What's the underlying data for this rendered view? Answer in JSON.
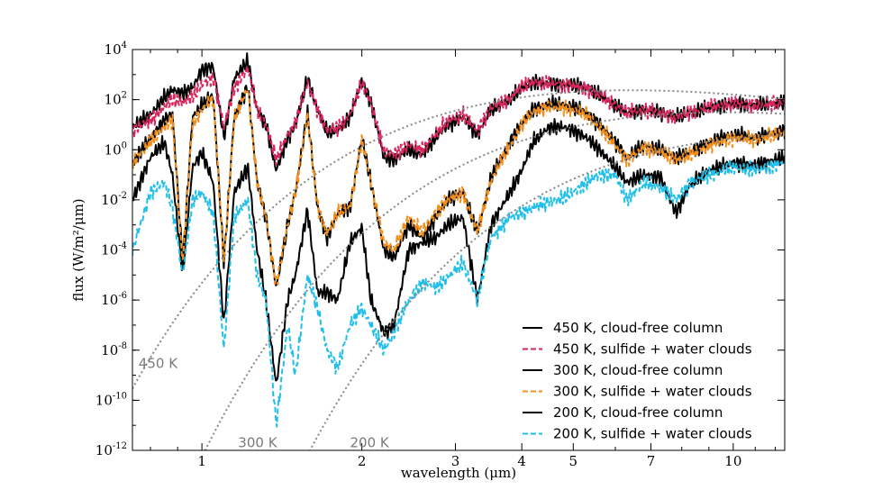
{
  "chart_data": {
    "type": "line",
    "xlabel": "wavelength (μm)",
    "ylabel": "flux (W/m²/μm)",
    "xscale": "log",
    "yscale": "log",
    "xlim": [
      0.74,
      12.5
    ],
    "ylim": [
      1e-12,
      10000.0
    ],
    "grid": false,
    "legend_position": "bottom-right",
    "x_ticks": [
      "1",
      "2",
      "3",
      "4",
      "5",
      "7",
      "10"
    ],
    "x_tick_values": [
      1,
      2,
      3,
      4,
      5,
      7,
      10
    ],
    "y_ticks": [
      {
        "base": "10",
        "exp": "4",
        "value": 4
      },
      {
        "base": "10",
        "exp": "2",
        "value": 2
      },
      {
        "base": "10",
        "exp": "0",
        "value": 0
      },
      {
        "base": "10",
        "exp": "-2",
        "value": -2
      },
      {
        "base": "10",
        "exp": "-4",
        "value": -4
      },
      {
        "base": "10",
        "exp": "-6",
        "value": -6
      },
      {
        "base": "10",
        "exp": "-8",
        "value": -8
      },
      {
        "base": "10",
        "exp": "-10",
        "value": -10
      },
      {
        "base": "10",
        "exp": "-12",
        "value": -12
      }
    ],
    "blackbody_labels": [
      {
        "text": "450 K",
        "x": 0.76,
        "y": 3e-09
      },
      {
        "text": "300 K",
        "x": 1.17,
        "y": 2e-12
      },
      {
        "text": "200 K",
        "x": 1.9,
        "y": 2e-12
      }
    ],
    "blackbody_temps": [
      450,
      300,
      200
    ],
    "series": [
      {
        "name": "450 K, cloud-free column",
        "color": "#000000",
        "dash": "solid",
        "temp": 450,
        "mode": "clear",
        "x": [
          0.74,
          0.8,
          0.85,
          0.88,
          0.92,
          0.96,
          1.0,
          1.05,
          1.1,
          1.15,
          1.22,
          1.27,
          1.32,
          1.38,
          1.45,
          1.5,
          1.58,
          1.65,
          1.72,
          1.8,
          1.9,
          2.0,
          2.08,
          2.2,
          2.3,
          2.45,
          2.6,
          2.75,
          2.9,
          3.1,
          3.3,
          3.5,
          3.8,
          4.0,
          4.2,
          4.5,
          4.8,
          5.0,
          5.3,
          5.6,
          6.0,
          6.3,
          6.8,
          7.3,
          7.8,
          8.3,
          9.0,
          10.0,
          11.0,
          12.5
        ],
        "y": [
          8,
          25,
          120,
          250,
          180,
          300,
          1500,
          2200,
          3,
          700,
          3500,
          40,
          10,
          0.15,
          3,
          10,
          700,
          40,
          5,
          6,
          20,
          600,
          80,
          0.5,
          0.4,
          1,
          0.6,
          3,
          10,
          20,
          4,
          40,
          100,
          300,
          500,
          450,
          400,
          380,
          300,
          150,
          60,
          30,
          40,
          30,
          20,
          30,
          50,
          70,
          60,
          80
        ]
      },
      {
        "name": "450 K, sulfide + water clouds",
        "color": "#d7265d",
        "dash": "dashed",
        "temp": 450,
        "mode": "cloud",
        "x": [
          0.74,
          0.8,
          0.85,
          0.88,
          0.92,
          0.96,
          1.0,
          1.05,
          1.1,
          1.15,
          1.22,
          1.27,
          1.32,
          1.38,
          1.45,
          1.5,
          1.58,
          1.65,
          1.72,
          1.8,
          1.9,
          2.0,
          2.08,
          2.2,
          2.3,
          2.45,
          2.6,
          2.75,
          2.9,
          3.1,
          3.3,
          3.5,
          3.8,
          4.0,
          4.2,
          4.5,
          4.8,
          5.0,
          5.3,
          5.6,
          6.0,
          6.3,
          6.8,
          7.3,
          7.8,
          8.3,
          9.0,
          10.0,
          11.0,
          12.5
        ],
        "y": [
          6,
          15,
          50,
          100,
          80,
          130,
          400,
          800,
          8,
          300,
          1800,
          40,
          10,
          0.4,
          4,
          12,
          500,
          40,
          6,
          7,
          25,
          450,
          80,
          0.8,
          0.7,
          1.5,
          1,
          4,
          14,
          25,
          6,
          45,
          110,
          330,
          480,
          430,
          380,
          360,
          280,
          150,
          60,
          30,
          40,
          30,
          20,
          30,
          50,
          70,
          60,
          80
        ]
      },
      {
        "name": "300 K,  cloud-free column",
        "color": "#000000",
        "dash": "solid",
        "temp": 300,
        "mode": "clear",
        "x": [
          0.74,
          0.8,
          0.85,
          0.88,
          0.92,
          0.96,
          1.0,
          1.05,
          1.1,
          1.15,
          1.22,
          1.27,
          1.32,
          1.38,
          1.45,
          1.5,
          1.58,
          1.65,
          1.72,
          1.8,
          1.9,
          2.0,
          2.08,
          2.2,
          2.3,
          2.45,
          2.6,
          2.75,
          2.9,
          3.1,
          3.3,
          3.5,
          3.8,
          4.0,
          4.2,
          4.5,
          4.8,
          5.0,
          5.3,
          5.6,
          6.0,
          6.3,
          6.8,
          7.3,
          7.8,
          8.3,
          9.0,
          10.0,
          11.0,
          12.5
        ],
        "y": [
          0.3,
          3,
          15,
          30,
          3e-05,
          20,
          60,
          150,
          3e-05,
          20,
          350,
          0.05,
          0.002,
          3e-06,
          0.001,
          0.02,
          30,
          0.005,
          0.0003,
          0.003,
          0.005,
          3,
          0.05,
          0.0001,
          5e-05,
          0.001,
          0.0003,
          0.002,
          0.01,
          0.02,
          0.0005,
          0.08,
          2,
          12,
          40,
          70,
          60,
          50,
          30,
          10,
          2,
          0.5,
          1.5,
          1,
          0.5,
          0.8,
          2,
          4,
          3,
          6
        ]
      },
      {
        "name": "300 K, sulfide + water clouds",
        "color": "#f28e1c",
        "dash": "dashed",
        "temp": 300,
        "mode": "cloud",
        "x": [
          0.74,
          0.8,
          0.85,
          0.88,
          0.92,
          0.96,
          1.0,
          1.05,
          1.1,
          1.15,
          1.22,
          1.27,
          1.32,
          1.38,
          1.45,
          1.5,
          1.58,
          1.65,
          1.72,
          1.8,
          1.9,
          2.0,
          2.08,
          2.2,
          2.3,
          2.45,
          2.6,
          2.75,
          2.9,
          3.1,
          3.3,
          3.5,
          3.8,
          4.0,
          4.2,
          4.5,
          4.8,
          5.0,
          5.3,
          5.6,
          6.0,
          6.3,
          6.8,
          7.3,
          7.8,
          8.3,
          9.0,
          10.0,
          11.0,
          12.5
        ],
        "y": [
          0.3,
          2,
          8,
          15,
          3e-05,
          10,
          40,
          120,
          3e-05,
          15,
          300,
          0.05,
          0.002,
          4e-06,
          0.001,
          0.02,
          25,
          0.005,
          0.0004,
          0.003,
          0.005,
          2.5,
          0.05,
          0.0002,
          0.0001,
          0.002,
          0.0005,
          0.003,
          0.01,
          0.02,
          0.0005,
          0.06,
          1.5,
          10,
          32,
          55,
          48,
          40,
          25,
          8,
          1.5,
          0.4,
          1.2,
          0.8,
          0.4,
          0.6,
          1.5,
          3,
          2.5,
          5
        ]
      },
      {
        "name": "200 K, cloud-free column",
        "color": "#000000",
        "dash": "solid",
        "temp": 200,
        "mode": "clear",
        "x": [
          0.74,
          0.8,
          0.85,
          0.88,
          0.92,
          0.96,
          1.0,
          1.05,
          1.1,
          1.15,
          1.22,
          1.27,
          1.32,
          1.38,
          1.45,
          1.5,
          1.58,
          1.65,
          1.72,
          1.8,
          1.9,
          2.0,
          2.08,
          2.2,
          2.3,
          2.45,
          2.6,
          2.75,
          2.9,
          3.1,
          3.3,
          3.5,
          3.8,
          4.0,
          4.2,
          4.5,
          4.8,
          5.0,
          5.3,
          5.6,
          6.0,
          6.3,
          6.8,
          7.3,
          7.8,
          8.3,
          9.0,
          10.0,
          11.0,
          12.5
        ],
        "y": [
          0.01,
          0.5,
          2,
          0.1,
          1e-05,
          0.2,
          0.8,
          0.05,
          1e-07,
          0.02,
          0.2,
          0.0001,
          1e-06,
          4e-10,
          1e-06,
          1e-05,
          0.004,
          2e-06,
          2e-06,
          1e-06,
          0.0002,
          0.0008,
          1e-06,
          5e-08,
          1e-07,
          0.0001,
          0.0002,
          0.0003,
          0.001,
          0.002,
          1e-06,
          0.001,
          0.02,
          0.15,
          2,
          8,
          8,
          6,
          3,
          1,
          0.2,
          0.05,
          0.1,
          0.08,
          0.003,
          0.04,
          0.15,
          0.3,
          0.25,
          0.5
        ]
      },
      {
        "name": "200 K, sulfide + water clouds",
        "color": "#20bfe9",
        "dash": "dashed",
        "temp": 200,
        "mode": "cloud",
        "x": [
          0.74,
          0.8,
          0.85,
          0.88,
          0.92,
          0.96,
          1.0,
          1.05,
          1.1,
          1.15,
          1.22,
          1.27,
          1.32,
          1.38,
          1.45,
          1.5,
          1.58,
          1.65,
          1.72,
          1.8,
          1.9,
          2.0,
          2.08,
          2.2,
          2.3,
          2.45,
          2.6,
          2.75,
          2.9,
          3.1,
          3.3,
          3.5,
          3.8,
          4.0,
          4.2,
          4.5,
          4.8,
          5.0,
          5.3,
          5.6,
          6.0,
          6.3,
          6.8,
          7.3,
          7.8,
          8.3,
          9.0,
          10.0,
          11.0,
          12.5
        ],
        "y": [
          0.0001,
          0.02,
          0.05,
          0.005,
          1e-05,
          0.01,
          0.02,
          0.003,
          1e-08,
          0.002,
          0.01,
          1e-05,
          1e-06,
          1e-11,
          1e-07,
          1e-09,
          1e-05,
          5e-07,
          1e-08,
          2e-09,
          1e-07,
          5e-07,
          1e-07,
          1e-08,
          5e-08,
          1e-06,
          5e-06,
          3e-06,
          8e-06,
          3e-05,
          1e-06,
          0.0003,
          0.002,
          0.003,
          0.005,
          0.008,
          0.012,
          0.02,
          0.05,
          0.1,
          0.1,
          0.01,
          0.05,
          0.03,
          0.01,
          0.05,
          0.1,
          0.2,
          0.15,
          0.3
        ]
      }
    ]
  }
}
